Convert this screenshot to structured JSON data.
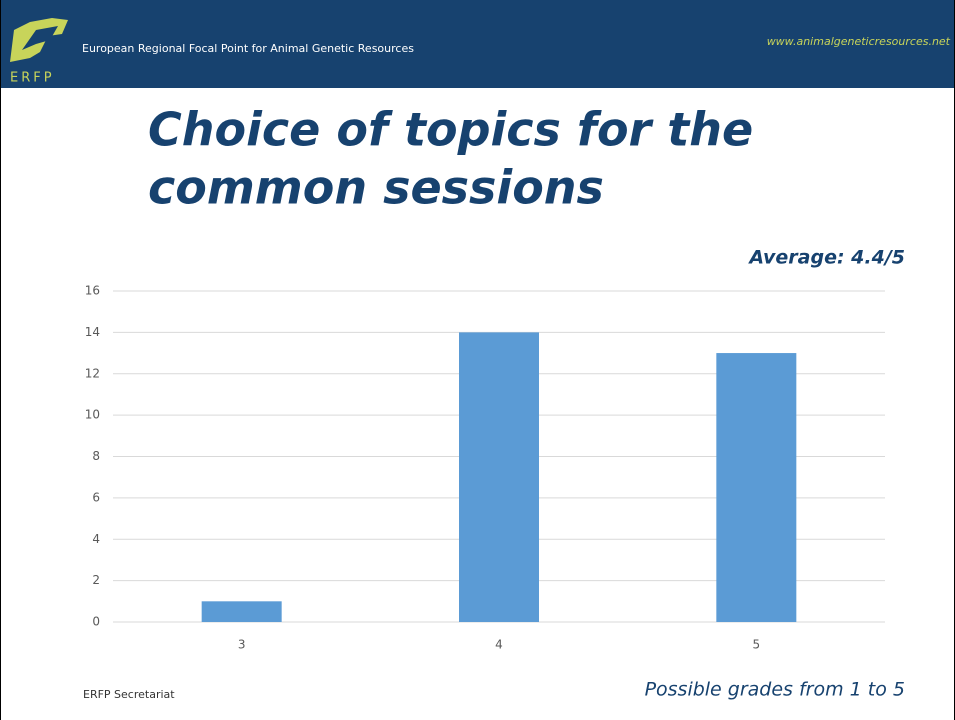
{
  "header": {
    "logo_text": "ERFP",
    "org": "European Regional Focal Point for Animal Genetic Resources",
    "url": "www.animalgeneticresources.net"
  },
  "footer": {
    "left": "ERFP Secretariat"
  },
  "chart_data": {
    "type": "bar",
    "title_lines": [
      "Choice of topics for the",
      "common sessions"
    ],
    "annotation": "Average: 4.4/5",
    "note": "Possible grades from 1 to 5",
    "categories": [
      "3",
      "4",
      "5"
    ],
    "values": [
      1,
      14,
      13
    ],
    "color": "#5b9bd5",
    "ylim": [
      0,
      16
    ],
    "yticks": [
      0,
      2,
      4,
      6,
      8,
      10,
      12,
      14,
      16
    ],
    "grid": true
  }
}
